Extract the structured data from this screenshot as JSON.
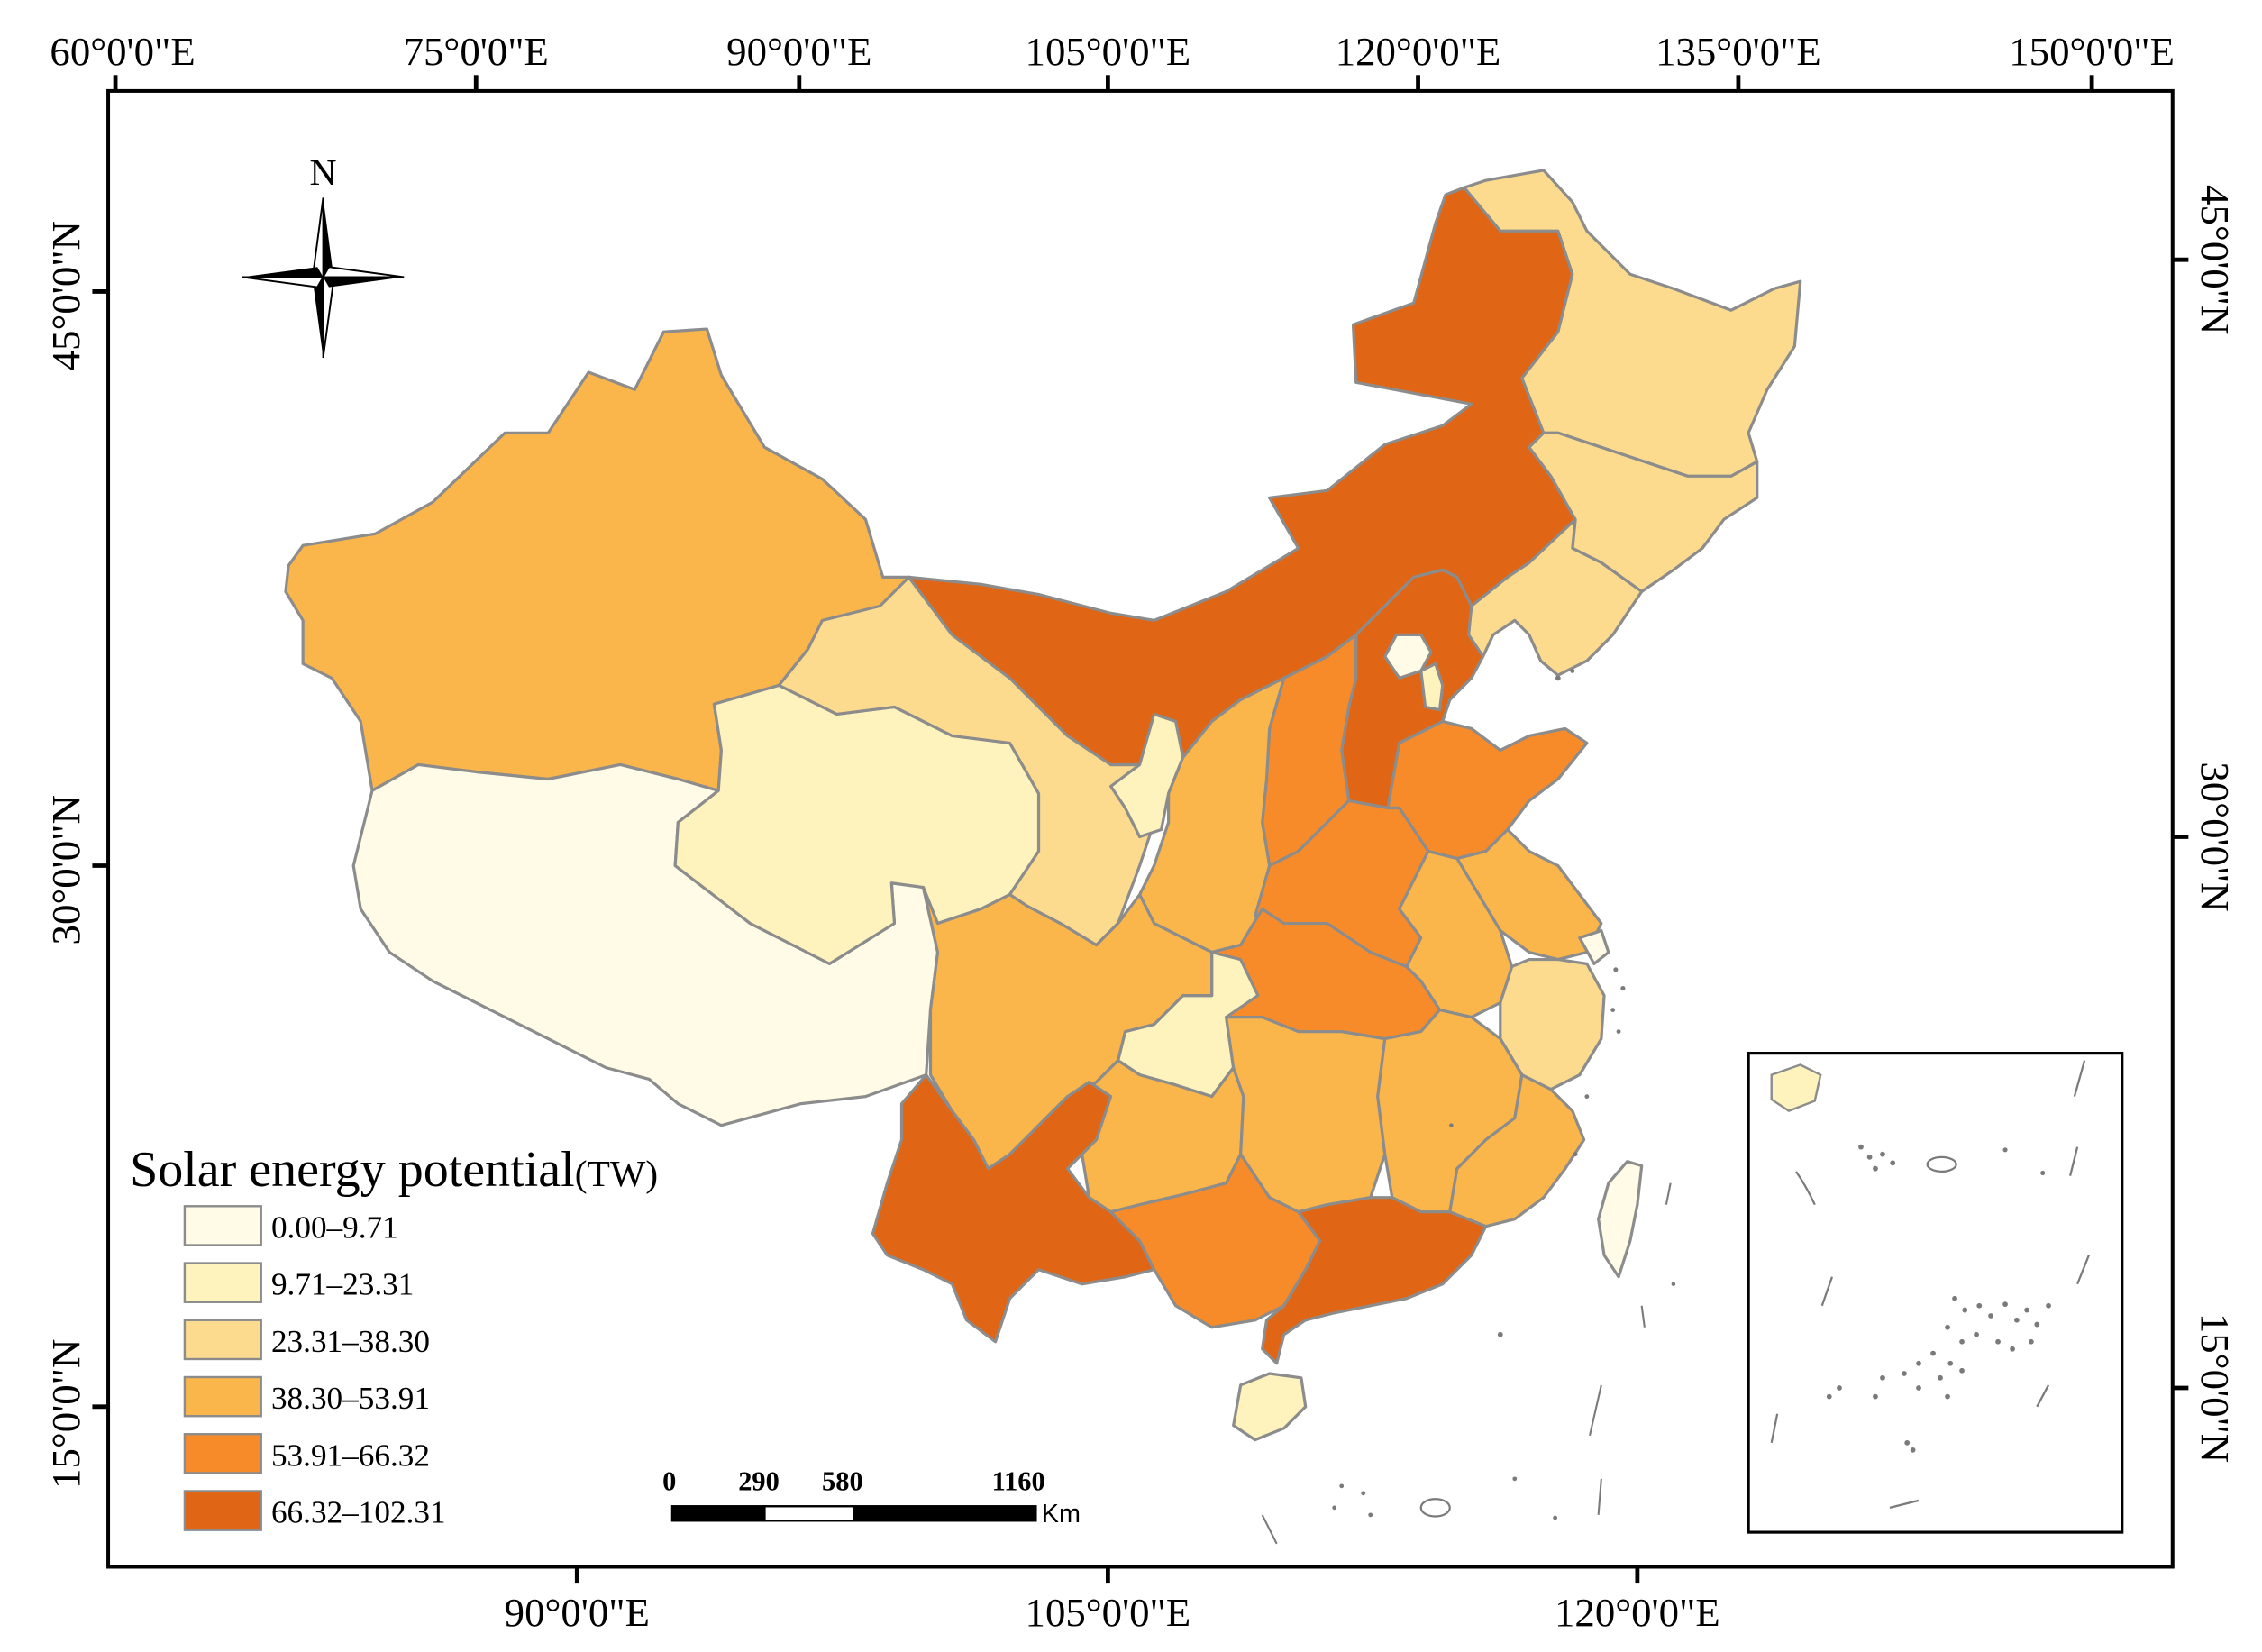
{
  "map": {
    "top_axis": [
      "60°0'0\"E",
      "75°0'0\"E",
      "90°0'0\"E",
      "105°0'0\"E",
      "120°0'0\"E",
      "135°0'0\"E",
      "150°0'0\"E"
    ],
    "bottom_axis": [
      "90°0'0\"E",
      "105°0'0\"E",
      "120°0'0\"E"
    ],
    "left_axis": [
      "45°0'0\"N",
      "30°0'0\"N",
      "15°0'0\"N"
    ],
    "right_axis": [
      "45°0'0\"N",
      "30°0'0\"N",
      "15°0'0\"N"
    ],
    "north_label": "N"
  },
  "legend": {
    "title": "Solar energy potential",
    "unit": "(TW)",
    "classes": [
      {
        "label": "0.00–9.71",
        "color": "#fffbe6"
      },
      {
        "label": "9.71–23.31",
        "color": "#fef3bd"
      },
      {
        "label": "23.31–38.30",
        "color": "#fddb8e"
      },
      {
        "label": "38.30–53.91",
        "color": "#fbb64b"
      },
      {
        "label": "53.91–66.32",
        "color": "#f78b2a"
      },
      {
        "label": "66.32–102.31",
        "color": "#e06514"
      }
    ]
  },
  "scale_bar": {
    "ticks": [
      "0",
      "290",
      "580",
      "1160"
    ],
    "unit": "Km"
  }
}
